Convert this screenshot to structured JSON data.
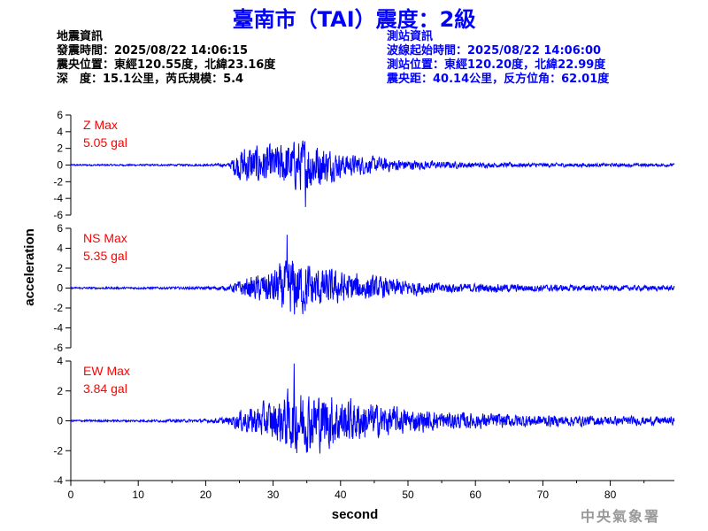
{
  "header": {
    "title": "臺南市（TAI）震度：2級"
  },
  "info_left": {
    "section_title": "地震資訊",
    "origin_time": "發震時間：2025/08/22 14:06:15",
    "epicenter": "震央位置：東經120.55度，北緯23.16度",
    "depth_magnitude": "深　度：15.1公里，芮氏規模：5.4"
  },
  "info_right": {
    "section_title": "測站資訊",
    "wave_start": "波線起始時間：2025/08/22 14:06:00",
    "station_location": "測站位置：東經120.20度，北緯22.99度",
    "distance_azimuth": "震央距：40.14公里，反方位角：62.01度"
  },
  "footer": {
    "agency": "中央氣象署"
  },
  "colors": {
    "trace": "#0000ff",
    "label": "#ff0000",
    "axis": "#000000"
  },
  "chart_data": {
    "type": "line",
    "xlabel": "second",
    "ylabel": "acceleration",
    "x_range": [
      0,
      89.5
    ],
    "x_ticks": [
      0,
      10,
      20,
      30,
      40,
      50,
      60,
      70,
      80
    ],
    "grid": false,
    "panels": [
      {
        "component": "Z",
        "label": "Z Max",
        "max_text": "5.05 gal",
        "peak": 5.05,
        "ylim": [
          -6,
          6
        ],
        "yticks": [
          6,
          4,
          2,
          0,
          -2,
          -4,
          -6
        ],
        "envelope": [
          [
            0,
            0.12
          ],
          [
            10,
            0.12
          ],
          [
            20,
            0.15
          ],
          [
            23.5,
            0.25
          ],
          [
            24.5,
            1.8
          ],
          [
            26,
            2.8
          ],
          [
            28,
            2.6
          ],
          [
            30,
            2.6
          ],
          [
            32,
            3
          ],
          [
            34,
            3.5
          ],
          [
            35.5,
            3.8
          ],
          [
            37,
            2.8
          ],
          [
            40,
            1.6
          ],
          [
            45,
            1.1
          ],
          [
            50,
            0.7
          ],
          [
            55,
            0.5
          ],
          [
            60,
            0.35
          ],
          [
            70,
            0.28
          ],
          [
            80,
            0.22
          ],
          [
            89.5,
            0.2
          ]
        ]
      },
      {
        "component": "NS",
        "label": "NS Max",
        "max_text": "5.35 gal",
        "peak": 5.35,
        "ylim": [
          -6,
          6
        ],
        "yticks": [
          6,
          4,
          2,
          0,
          -2,
          -4,
          -6
        ],
        "envelope": [
          [
            0,
            0.12
          ],
          [
            10,
            0.12
          ],
          [
            20,
            0.15
          ],
          [
            23.5,
            0.3
          ],
          [
            25,
            0.9
          ],
          [
            27,
            1.3
          ],
          [
            29,
            1.8
          ],
          [
            31,
            2.6
          ],
          [
            33,
            3.6
          ],
          [
            35,
            2.8
          ],
          [
            37,
            2.2
          ],
          [
            40,
            1.9
          ],
          [
            45,
            1.3
          ],
          [
            50,
            0.9
          ],
          [
            55,
            0.6
          ],
          [
            60,
            0.5
          ],
          [
            70,
            0.4
          ],
          [
            80,
            0.3
          ],
          [
            89.5,
            0.3
          ]
        ]
      },
      {
        "component": "EW",
        "label": "EW Max",
        "max_text": "3.84 gal",
        "peak": 3.84,
        "ylim": [
          -4,
          4
        ],
        "yticks": [
          4,
          2,
          0,
          -2,
          -4
        ],
        "envelope": [
          [
            0,
            0.08
          ],
          [
            10,
            0.08
          ],
          [
            20,
            0.12
          ],
          [
            23.5,
            0.3
          ],
          [
            25,
            0.8
          ],
          [
            27,
            1.1
          ],
          [
            29,
            1.4
          ],
          [
            31,
            1.8
          ],
          [
            33,
            2.4
          ],
          [
            35,
            2.3
          ],
          [
            38,
            2.1
          ],
          [
            40,
            1.8
          ],
          [
            45,
            1.3
          ],
          [
            50,
            0.9
          ],
          [
            55,
            0.7
          ],
          [
            60,
            0.6
          ],
          [
            70,
            0.45
          ],
          [
            80,
            0.35
          ],
          [
            89.5,
            0.3
          ]
        ]
      }
    ]
  }
}
